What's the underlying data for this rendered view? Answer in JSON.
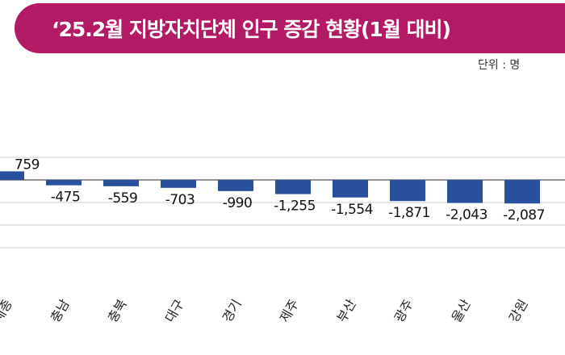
{
  "header": {
    "title": "‘25.2월 지방자치단체 인구 증감 현황(1월 대비)"
  },
  "unit_label": "단위 : 명",
  "colors": {
    "title_bg": "#b21a66",
    "bar": "#28509c",
    "grid": "#cccccc",
    "baseline": "#555555"
  },
  "chart_data": {
    "type": "bar",
    "title": "‘25.2월 지방자치단체 인구 증감 현황(1월 대비)",
    "unit": "단위 : 명",
    "categories": [
      "세종",
      "충남",
      "충북",
      "대구",
      "경기",
      "제주",
      "부산",
      "광주",
      "울산",
      "강원"
    ],
    "values": [
      759,
      -475,
      -559,
      -703,
      -990,
      -1255,
      -1554,
      -1871,
      -2043,
      -2087
    ],
    "value_labels": [
      "759",
      "-475",
      "-559",
      "-703",
      "-990",
      "-1,255",
      "-1,554",
      "-1,871",
      "-2,043",
      "-2,087"
    ],
    "xlabel": "",
    "ylabel": "",
    "ylim": [
      -5000,
      2500
    ],
    "grid": true,
    "legend": "none"
  }
}
